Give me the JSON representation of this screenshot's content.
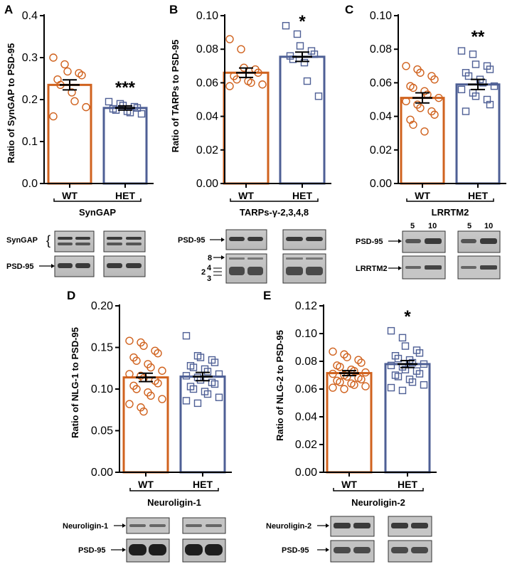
{
  "colors": {
    "wt": "#d0621e",
    "het": "#4e5f95",
    "axis": "#000000"
  },
  "chart_data": [
    {
      "panel": "A",
      "type": "bar",
      "ylabel": "Ratio of SynGAP to PSD-95",
      "ylim": [
        0,
        0.4
      ],
      "yticks": [
        "0.0",
        "0.1",
        "0.2",
        "0.3",
        "0.4"
      ],
      "categories": [
        "WT",
        "HET"
      ],
      "values": [
        0.235,
        0.18
      ],
      "sem": [
        0.012,
        0.005
      ],
      "significance": "***",
      "group_label": "SynGAP",
      "points": [
        [
          0.3,
          0.284,
          0.267,
          0.263,
          0.258,
          0.248,
          0.235,
          0.217,
          0.196,
          0.182,
          0.16
        ],
        [
          0.195,
          0.19,
          0.186,
          0.183,
          0.18,
          0.178,
          0.175,
          0.172,
          0.169,
          0.166
        ]
      ]
    },
    {
      "panel": "B",
      "type": "bar",
      "ylabel": "Ratio of TARPs to PSD-95",
      "ylim": [
        0,
        0.1
      ],
      "yticks": [
        "0.00",
        "0.02",
        "0.04",
        "0.06",
        "0.08",
        "0.10"
      ],
      "categories": [
        "WT",
        "HET"
      ],
      "values": [
        0.066,
        0.0755
      ],
      "sem": [
        0.0028,
        0.0028
      ],
      "significance": "*",
      "group_label": "TARPs-γ-2,3,4,8",
      "points": [
        [
          0.086,
          0.08,
          0.069,
          0.068,
          0.066,
          0.064,
          0.062,
          0.061,
          0.06,
          0.059,
          0.058
        ],
        [
          0.094,
          0.089,
          0.082,
          0.079,
          0.077,
          0.076,
          0.074,
          0.072,
          0.061,
          0.052
        ]
      ]
    },
    {
      "panel": "C",
      "type": "bar",
      "ylabel": "",
      "ylim": [
        0,
        0.1
      ],
      "yticks": [
        "0.00",
        "0.02",
        "0.04",
        "0.06",
        "0.08",
        "0.10"
      ],
      "categories": [
        "WT",
        "HET"
      ],
      "values": [
        0.051,
        0.059
      ],
      "sem": [
        0.003,
        0.003
      ],
      "significance": "**",
      "group_label": "LRRTM2",
      "points": [
        [
          0.07,
          0.068,
          0.066,
          0.064,
          0.062,
          0.058,
          0.057,
          0.055,
          0.053,
          0.051,
          0.049,
          0.047,
          0.045,
          0.043,
          0.041,
          0.038,
          0.035,
          0.031
        ],
        [
          0.079,
          0.077,
          0.071,
          0.07,
          0.068,
          0.066,
          0.064,
          0.062,
          0.06,
          0.058,
          0.056,
          0.054,
          0.052,
          0.05,
          0.047,
          0.043
        ]
      ]
    },
    {
      "panel": "D",
      "type": "bar",
      "ylabel": "Ratio of NLG-1 to PSD-95",
      "ylim": [
        0,
        0.2
      ],
      "yticks": [
        "0.00",
        "0.05",
        "0.10",
        "0.15",
        "0.20"
      ],
      "categories": [
        "WT",
        "HET"
      ],
      "values": [
        0.114,
        0.115
      ],
      "sem": [
        0.005,
        0.005
      ],
      "significance": "",
      "group_label": "Neuroligin-1",
      "points": [
        [
          0.158,
          0.156,
          0.152,
          0.146,
          0.143,
          0.138,
          0.134,
          0.13,
          0.126,
          0.122,
          0.118,
          0.116,
          0.113,
          0.11,
          0.107,
          0.104,
          0.1,
          0.096,
          0.092,
          0.088,
          0.082,
          0.078,
          0.073
        ],
        [
          0.164,
          0.14,
          0.138,
          0.135,
          0.132,
          0.128,
          0.126,
          0.124,
          0.121,
          0.118,
          0.116,
          0.114,
          0.111,
          0.108,
          0.106,
          0.103,
          0.1,
          0.097,
          0.094,
          0.09,
          0.086,
          0.083
        ]
      ]
    },
    {
      "panel": "E",
      "type": "bar",
      "ylabel": "Ratio of NLG-2 to PSD-95",
      "ylim": [
        0,
        0.12
      ],
      "yticks": [
        "0.00",
        "0.02",
        "0.04",
        "0.06",
        "0.08",
        "0.10",
        "0.12"
      ],
      "categories": [
        "WT",
        "HET"
      ],
      "values": [
        0.0715,
        0.078
      ],
      "sem": [
        0.0018,
        0.0025
      ],
      "significance": "*",
      "group_label": "Neuroligin-2",
      "points": [
        [
          0.087,
          0.085,
          0.083,
          0.081,
          0.079,
          0.077,
          0.076,
          0.074,
          0.073,
          0.072,
          0.071,
          0.07,
          0.069,
          0.068,
          0.067,
          0.066,
          0.065,
          0.064,
          0.063,
          0.062,
          0.061,
          0.06
        ],
        [
          0.102,
          0.097,
          0.091,
          0.088,
          0.086,
          0.084,
          0.082,
          0.081,
          0.079,
          0.078,
          0.077,
          0.076,
          0.074,
          0.073,
          0.071,
          0.07,
          0.069,
          0.067,
          0.065,
          0.063,
          0.061,
          0.059
        ]
      ]
    }
  ],
  "blots": {
    "A": {
      "labels": [
        "SynGAP",
        "PSD-95"
      ]
    },
    "B": {
      "labels": [
        "PSD-95",
        "8",
        "4",
        "2",
        "3"
      ]
    },
    "C": {
      "labels": [
        "PSD-95",
        "LRRTM2"
      ],
      "lanes": [
        "5",
        "10",
        "5",
        "10"
      ]
    },
    "D": {
      "labels": [
        "Neuroligin-1",
        "PSD-95"
      ]
    },
    "E": {
      "labels": [
        "Neuroligin-2",
        "PSD-95"
      ]
    }
  }
}
